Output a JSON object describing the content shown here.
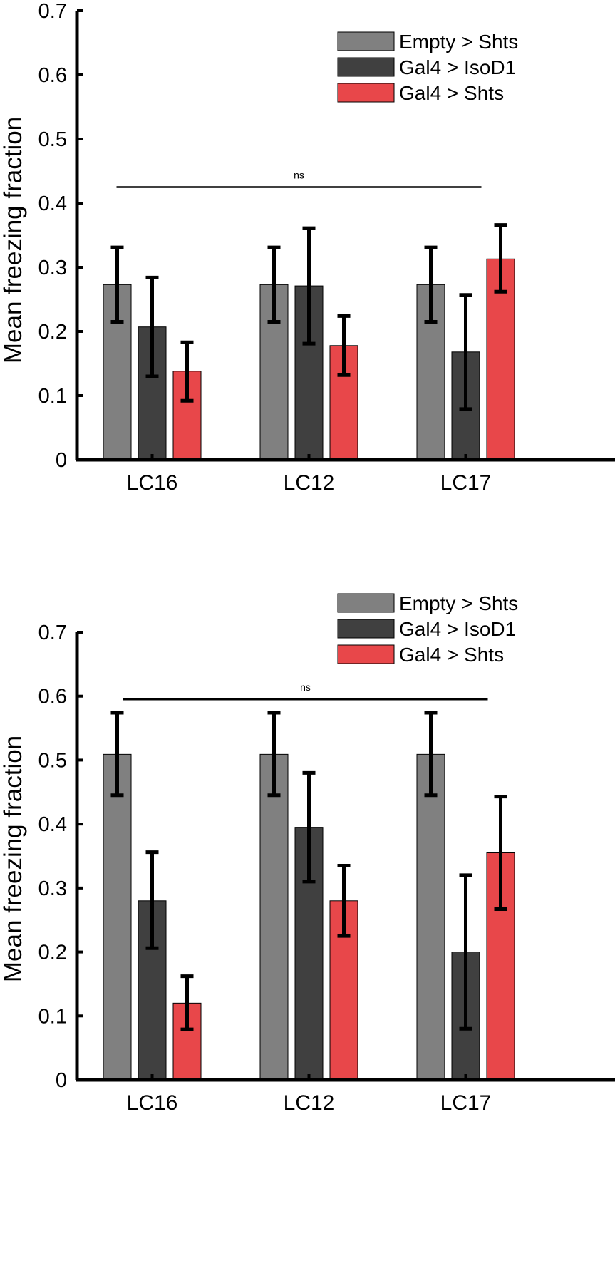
{
  "chart_data": [
    {
      "type": "bar",
      "title": "",
      "xlabel": "",
      "ylabel": "Mean freezing fraction",
      "ylim": [
        0,
        0.7
      ],
      "yticks": [
        0,
        0.1,
        0.2,
        0.3,
        0.4,
        0.5,
        0.6,
        0.7
      ],
      "ytick_labels": [
        "0",
        "0.1",
        "0.2",
        "0.3",
        "0.4",
        "0.5",
        "0.6",
        "0.7"
      ],
      "categories": [
        "LC16",
        "LC12",
        "LC17"
      ],
      "series": [
        {
          "name": "Empty > Shts",
          "color": "#808080",
          "values": [
            0.273,
            0.273,
            0.273
          ],
          "err_low": [
            0.215,
            0.215,
            0.215
          ],
          "err_high": [
            0.331,
            0.331,
            0.331
          ]
        },
        {
          "name": "Gal4 > IsoD1",
          "color": "#404040",
          "values": [
            0.207,
            0.271,
            0.168
          ],
          "err_low": [
            0.13,
            0.181,
            0.079
          ],
          "err_high": [
            0.284,
            0.361,
            0.257
          ]
        },
        {
          "name": "Gal4 > Shts",
          "color": "#e8474a",
          "values": [
            0.138,
            0.178,
            0.313
          ],
          "err_low": [
            0.092,
            0.132,
            0.262
          ],
          "err_high": [
            0.183,
            0.224,
            0.366
          ]
        }
      ],
      "legend_position": "top-right",
      "significance": {
        "label": "ns",
        "y": 0.425
      },
      "grid": false
    },
    {
      "type": "bar",
      "title": "",
      "xlabel": "",
      "ylabel": "Mean freezing fraction",
      "ylim": [
        0,
        0.7
      ],
      "yticks": [
        0,
        0.1,
        0.2,
        0.3,
        0.4,
        0.5,
        0.6,
        0.7
      ],
      "ytick_labels": [
        "0",
        "0.1",
        "0.2",
        "0.3",
        "0.4",
        "0.5",
        "0.6",
        "0.7"
      ],
      "categories": [
        "LC16",
        "LC12",
        "LC17"
      ],
      "series": [
        {
          "name": "Empty > Shts",
          "color": "#808080",
          "values": [
            0.509,
            0.509,
            0.509
          ],
          "err_low": [
            0.445,
            0.445,
            0.445
          ],
          "err_high": [
            0.574,
            0.574,
            0.574
          ]
        },
        {
          "name": "Gal4 > IsoD1",
          "color": "#404040",
          "values": [
            0.28,
            0.395,
            0.2
          ],
          "err_low": [
            0.206,
            0.31,
            0.08
          ],
          "err_high": [
            0.356,
            0.48,
            0.32
          ]
        },
        {
          "name": "Gal4 > Shts",
          "color": "#e8474a",
          "values": [
            0.12,
            0.28,
            0.355
          ],
          "err_low": [
            0.079,
            0.225,
            0.267
          ],
          "err_high": [
            0.162,
            0.335,
            0.443
          ]
        }
      ],
      "legend_position": "top-right",
      "significance": {
        "label": "ns",
        "y": 0.595
      },
      "grid": false
    }
  ]
}
